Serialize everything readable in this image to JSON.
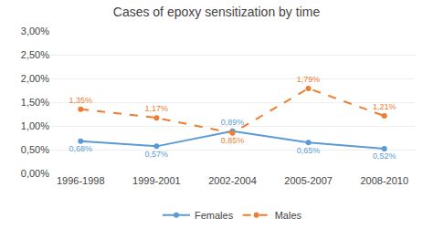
{
  "chart_data": {
    "type": "line",
    "title": "Cases of epoxy sensitization by time",
    "categories": [
      "1996-1998",
      "1999-2001",
      "2002-2004",
      "2005-2007",
      "2008-2010"
    ],
    "series": [
      {
        "name": "Females",
        "color": "#5b9bd5",
        "line_style": "solid",
        "marker": "circle",
        "values": [
          0.0068,
          0.0057,
          0.0089,
          0.0065,
          0.0052
        ],
        "value_labels": [
          "0,68%",
          "0,57%",
          "0,89%",
          "0,65%",
          "0,52%"
        ]
      },
      {
        "name": "Males",
        "color": "#ed7d31",
        "line_style": "dash",
        "marker": "circle",
        "values": [
          0.0135,
          0.0117,
          0.0085,
          0.0179,
          0.0121
        ],
        "value_labels": [
          "1,35%",
          "1,17%",
          "0,85%",
          "1,79%",
          "1,21%"
        ]
      }
    ],
    "ylim": [
      0.0,
      0.03
    ],
    "yticks": [
      {
        "value": 0.0,
        "label": "0,00%"
      },
      {
        "value": 0.005,
        "label": "0,50%"
      },
      {
        "value": 0.01,
        "label": "1,00%"
      },
      {
        "value": 0.015,
        "label": "1,50%"
      },
      {
        "value": 0.02,
        "label": "2,00%"
      },
      {
        "value": 0.025,
        "label": "2,50%"
      },
      {
        "value": 0.03,
        "label": "3,00%"
      }
    ],
    "grid": true,
    "legend": "bottom",
    "data_labels": true
  }
}
